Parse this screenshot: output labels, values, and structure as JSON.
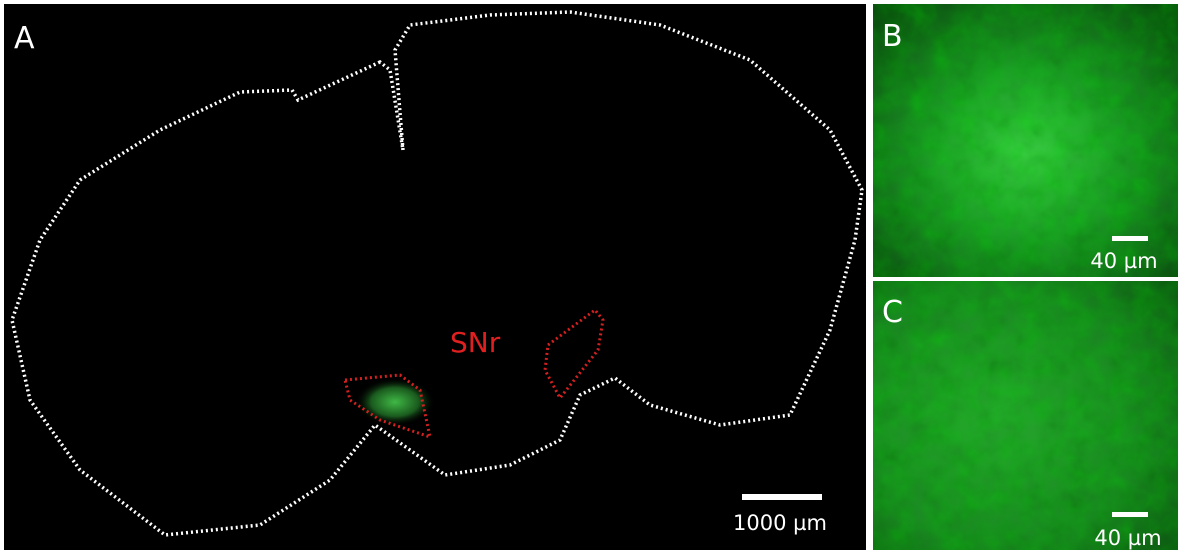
{
  "panels": [
    {
      "label": "A",
      "annotation": "SNr",
      "scale_bar": "1000 µm"
    },
    {
      "label": "B",
      "scale_bar": "40 µm"
    },
    {
      "label": "C",
      "scale_bar": "40 µm"
    }
  ]
}
